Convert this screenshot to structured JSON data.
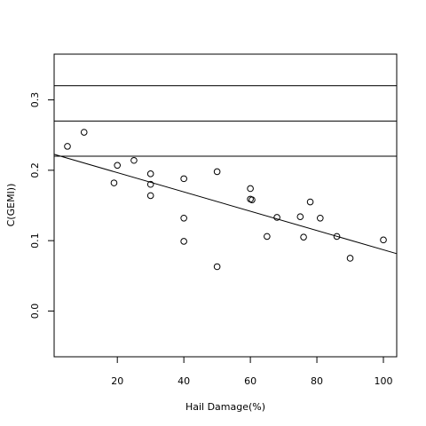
{
  "chart_data": {
    "type": "scatter",
    "title": "",
    "xlabel": "Hail Damage(%)",
    "ylabel": "C(GEMI))",
    "xlim": [
      1,
      104
    ],
    "ylim": [
      -0.065,
      0.365
    ],
    "x_ticks": [
      20,
      40,
      60,
      80,
      100
    ],
    "y_ticks": [
      0.0,
      0.1,
      0.2,
      0.3
    ],
    "x_tick_labels": [
      "20",
      "40",
      "60",
      "80",
      "100"
    ],
    "y_tick_labels": [
      "0.0",
      "0.1",
      "0.2",
      "0.3"
    ],
    "grid": false,
    "legend": "none",
    "points": [
      {
        "x": 5,
        "y": 0.234
      },
      {
        "x": 10,
        "y": 0.254
      },
      {
        "x": 19,
        "y": 0.182
      },
      {
        "x": 20,
        "y": 0.207
      },
      {
        "x": 25,
        "y": 0.214
      },
      {
        "x": 30,
        "y": 0.195
      },
      {
        "x": 30,
        "y": 0.18
      },
      {
        "x": 30,
        "y": 0.164
      },
      {
        "x": 40,
        "y": 0.188
      },
      {
        "x": 40,
        "y": 0.132
      },
      {
        "x": 40,
        "y": 0.099
      },
      {
        "x": 50,
        "y": 0.198
      },
      {
        "x": 50,
        "y": 0.063
      },
      {
        "x": 60,
        "y": 0.174
      },
      {
        "x": 60,
        "y": 0.159
      },
      {
        "x": 60.5,
        "y": 0.158
      },
      {
        "x": 65,
        "y": 0.106
      },
      {
        "x": 68,
        "y": 0.133
      },
      {
        "x": 75,
        "y": 0.134
      },
      {
        "x": 76,
        "y": 0.105
      },
      {
        "x": 78,
        "y": 0.155
      },
      {
        "x": 81,
        "y": 0.132
      },
      {
        "x": 86,
        "y": 0.106
      },
      {
        "x": 90,
        "y": 0.075
      },
      {
        "x": 100,
        "y": 0.101
      }
    ],
    "regression_line": {
      "intercept": 0.224,
      "slope": -0.00137
    },
    "horizontal_lines": [
      0.22,
      0.27,
      0.32
    ]
  }
}
